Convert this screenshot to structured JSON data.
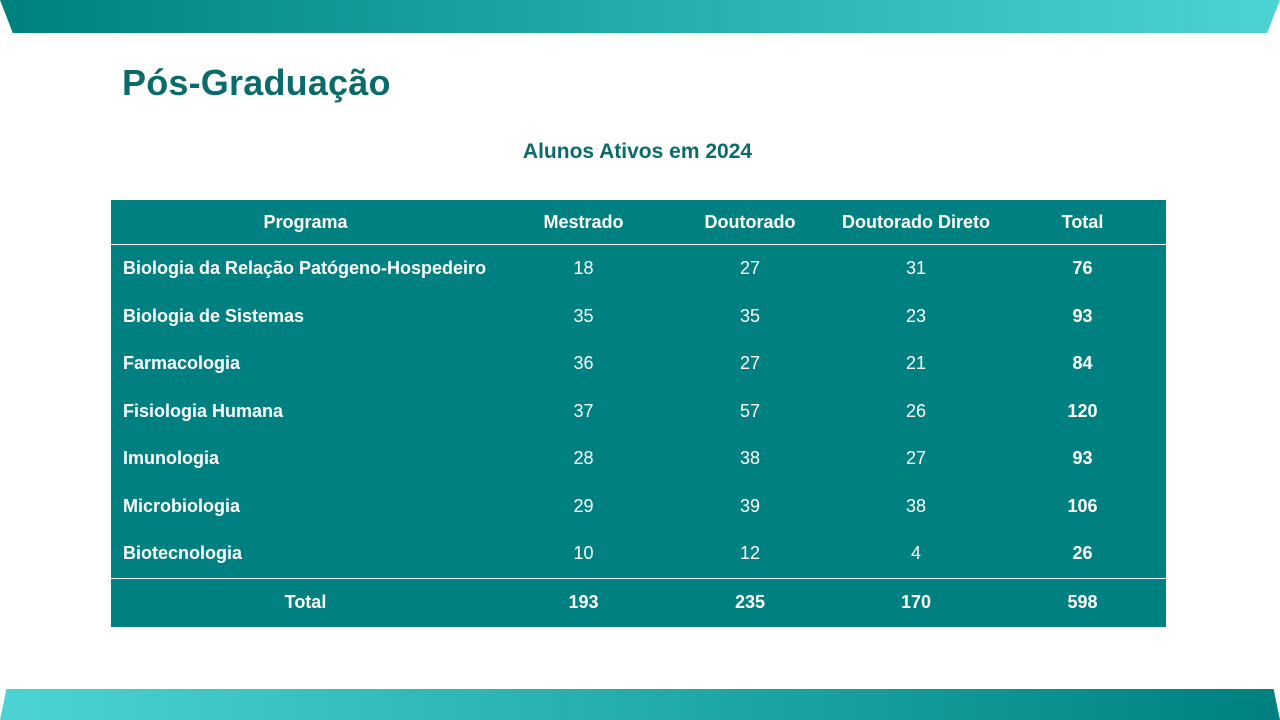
{
  "slide": {
    "title": "Pós-Graduação",
    "subtitle": "Alunos Ativos em 2024"
  },
  "table": {
    "headers": [
      "Programa",
      "Mestrado",
      "Doutorado",
      "Doutorado Direto",
      "Total"
    ],
    "rows": [
      {
        "programa": "Biologia da Relação Patógeno-Hospedeiro",
        "mestrado": "18",
        "doutorado": "27",
        "doutorado_direto": "31",
        "total": "76"
      },
      {
        "programa": "Biologia de Sistemas",
        "mestrado": "35",
        "doutorado": "35",
        "doutorado_direto": "23",
        "total": "93"
      },
      {
        "programa": "Farmacologia",
        "mestrado": "36",
        "doutorado": "27",
        "doutorado_direto": "21",
        "total": "84"
      },
      {
        "programa": "Fisiologia Humana",
        "mestrado": "37",
        "doutorado": "57",
        "doutorado_direto": "26",
        "total": "120"
      },
      {
        "programa": "Imunologia",
        "mestrado": "28",
        "doutorado": "38",
        "doutorado_direto": "27",
        "total": "93"
      },
      {
        "programa": "Microbiologia",
        "mestrado": "29",
        "doutorado": "39",
        "doutorado_direto": "38",
        "total": "106"
      },
      {
        "programa": "Biotecnologia",
        "mestrado": "10",
        "doutorado": "12",
        "doutorado_direto": "4",
        "total": "26"
      }
    ],
    "footer": {
      "label": "Total",
      "mestrado": "193",
      "doutorado": "235",
      "doutorado_direto": "170",
      "total": "598"
    }
  },
  "colors": {
    "accent": "#008080",
    "title": "#0b6b6b",
    "band_light": "#4dd3d3"
  }
}
